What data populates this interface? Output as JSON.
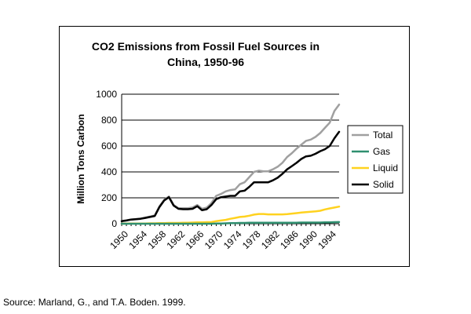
{
  "source_note": "Source: Marland, G., and T.A. Boden. 1999.",
  "chart_data": {
    "type": "line",
    "title": [
      "CO2 Emissions from Fossil Fuel Sources in",
      "China, 1950-96"
    ],
    "ylabel": "Million Tons Carbon",
    "xlabel": "",
    "xlim": [
      1950,
      1996
    ],
    "ylim": [
      0,
      1000
    ],
    "yticks": [
      0,
      200,
      400,
      600,
      800,
      1000
    ],
    "xtick_labels": [
      "1950",
      "1954",
      "1958",
      "1962",
      "1966",
      "1970",
      "1974",
      "1978",
      "1982",
      "1986",
      "1990",
      "1994"
    ],
    "grid": "horizontal",
    "legend_position": "right",
    "x": [
      1950,
      1951,
      1952,
      1953,
      1954,
      1955,
      1956,
      1957,
      1958,
      1959,
      1960,
      1961,
      1962,
      1963,
      1964,
      1965,
      1966,
      1967,
      1968,
      1969,
      1970,
      1971,
      1972,
      1973,
      1974,
      1975,
      1976,
      1977,
      1978,
      1979,
      1980,
      1981,
      1982,
      1983,
      1984,
      1985,
      1986,
      1987,
      1988,
      1989,
      1990,
      1991,
      1992,
      1993,
      1994,
      1995,
      1996
    ],
    "series": [
      {
        "name": "Total",
        "color": "#a0a0a0",
        "values": [
          21,
          26,
          33,
          36,
          40,
          48,
          55,
          65,
          135,
          185,
          210,
          145,
          120,
          120,
          120,
          125,
          145,
          115,
          125,
          160,
          215,
          230,
          250,
          260,
          265,
          305,
          320,
          360,
          400,
          410,
          405,
          405,
          420,
          440,
          470,
          515,
          545,
          580,
          610,
          640,
          650,
          670,
          700,
          740,
          780,
          870,
          920
        ]
      },
      {
        "name": "Gas",
        "color": "#2f8f6f",
        "values": [
          0,
          0,
          0,
          0,
          0,
          0,
          0,
          0,
          0,
          0,
          0,
          0,
          0,
          0,
          0,
          0,
          0,
          0,
          0,
          0,
          1,
          2,
          3,
          4,
          5,
          6,
          6,
          7,
          8,
          8,
          8,
          8,
          8,
          8,
          8,
          8,
          8,
          8,
          9,
          9,
          9,
          9,
          9,
          10,
          11,
          12,
          13
        ]
      },
      {
        "name": "Liquid",
        "color": "#ffd21f",
        "values": [
          0,
          1,
          1,
          1,
          2,
          2,
          3,
          3,
          4,
          5,
          6,
          6,
          6,
          7,
          8,
          9,
          10,
          11,
          12,
          13,
          20,
          25,
          30,
          38,
          45,
          52,
          55,
          62,
          70,
          75,
          75,
          72,
          72,
          72,
          72,
          74,
          78,
          82,
          86,
          90,
          92,
          95,
          100,
          110,
          118,
          125,
          132
        ]
      },
      {
        "name": "Solid",
        "color": "#000000",
        "values": [
          20,
          25,
          32,
          35,
          38,
          45,
          52,
          60,
          130,
          180,
          205,
          140,
          115,
          112,
          112,
          115,
          135,
          104,
          112,
          145,
          190,
          205,
          210,
          215,
          215,
          250,
          255,
          285,
          320,
          320,
          320,
          320,
          335,
          355,
          385,
          420,
          445,
          470,
          500,
          520,
          525,
          540,
          560,
          575,
          600,
          660,
          710
        ]
      }
    ]
  }
}
